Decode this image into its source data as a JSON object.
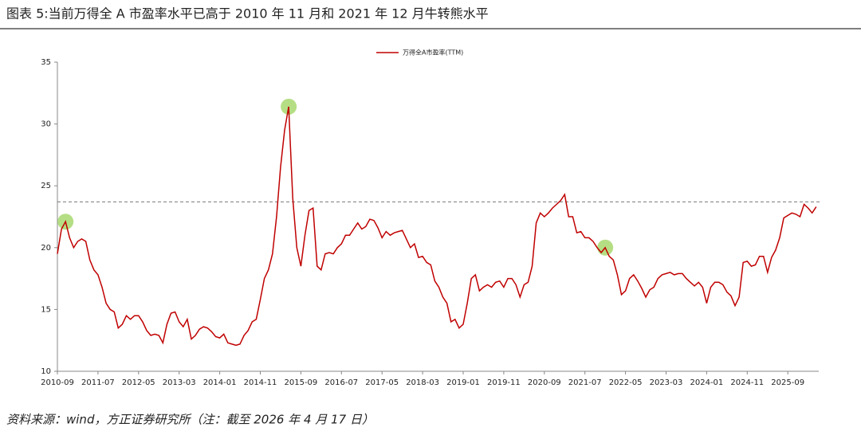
{
  "chart_data": {
    "type": "line",
    "title": "图表 5:当前万得全 A 市盈率水平已高于 2010 年 11 月和 2021 年 12 月牛转熊水平",
    "source": "资料来源：wind，方正证券研究所（注：截至 2026 年 4 月 17 日）",
    "x": [
      "2010-09",
      "2010-10",
      "2010-11",
      "2010-12",
      "2011-01",
      "2011-02",
      "2011-03",
      "2011-04",
      "2011-05",
      "2011-06",
      "2011-07",
      "2011-08",
      "2011-09",
      "2011-10",
      "2011-11",
      "2011-12",
      "2012-01",
      "2012-02",
      "2012-03",
      "2012-04",
      "2012-05",
      "2012-06",
      "2012-07",
      "2012-08",
      "2012-09",
      "2012-10",
      "2012-11",
      "2012-12",
      "2013-01",
      "2013-02",
      "2013-03",
      "2013-04",
      "2013-05",
      "2013-06",
      "2013-07",
      "2013-08",
      "2013-09",
      "2013-10",
      "2013-11",
      "2013-12",
      "2014-01",
      "2014-02",
      "2014-03",
      "2014-04",
      "2014-05",
      "2014-06",
      "2014-07",
      "2014-08",
      "2014-09",
      "2014-10",
      "2014-11",
      "2014-12",
      "2015-01",
      "2015-02",
      "2015-03",
      "2015-04",
      "2015-05",
      "2015-06",
      "2015-07",
      "2015-08",
      "2015-09",
      "2015-10",
      "2015-11",
      "2015-12",
      "2016-01",
      "2016-02",
      "2016-03",
      "2016-04",
      "2016-05",
      "2016-06",
      "2016-07",
      "2016-08",
      "2016-09",
      "2016-10",
      "2016-11",
      "2016-12",
      "2017-01",
      "2017-02",
      "2017-03",
      "2017-04",
      "2017-05",
      "2017-06",
      "2017-07",
      "2017-08",
      "2017-09",
      "2017-10",
      "2017-11",
      "2017-12",
      "2018-01",
      "2018-02",
      "2018-03",
      "2018-04",
      "2018-05",
      "2018-06",
      "2018-07",
      "2018-08",
      "2018-09",
      "2018-10",
      "2018-11",
      "2018-12",
      "2019-01",
      "2019-02",
      "2019-03",
      "2019-04",
      "2019-05",
      "2019-06",
      "2019-07",
      "2019-08",
      "2019-09",
      "2019-10",
      "2019-11",
      "2019-12",
      "2020-01",
      "2020-02",
      "2020-03",
      "2020-04",
      "2020-05",
      "2020-06",
      "2020-07",
      "2020-08",
      "2020-09",
      "2020-10",
      "2020-11",
      "2020-12",
      "2021-01",
      "2021-02",
      "2021-03",
      "2021-04",
      "2021-05",
      "2021-06",
      "2021-07",
      "2021-08",
      "2021-09",
      "2021-10",
      "2021-11",
      "2021-12",
      "2022-01",
      "2022-02",
      "2022-03",
      "2022-04",
      "2022-05",
      "2022-06",
      "2022-07",
      "2022-08",
      "2022-09",
      "2022-10",
      "2022-11",
      "2022-12",
      "2023-01",
      "2023-02",
      "2023-03",
      "2023-04",
      "2023-05",
      "2023-06",
      "2023-07",
      "2023-08",
      "2023-09",
      "2023-10",
      "2023-11",
      "2023-12",
      "2024-01",
      "2024-02",
      "2024-03",
      "2024-04",
      "2024-05",
      "2024-06",
      "2024-07",
      "2024-08",
      "2024-09",
      "2024-10",
      "2024-11",
      "2024-12",
      "2025-01",
      "2025-02",
      "2025-03",
      "2025-04",
      "2025-05",
      "2025-06",
      "2025-07",
      "2025-08",
      "2025-09",
      "2025-10",
      "2025-11",
      "2025-12",
      "2026-01",
      "2026-02",
      "2026-03",
      "2026-04"
    ],
    "series": [
      {
        "name": "万得全A市盈率(TTM)",
        "color": "#c00000",
        "values": [
          19.5,
          21.5,
          22.1,
          20.8,
          20.0,
          20.5,
          20.7,
          20.5,
          19.0,
          18.2,
          17.8,
          16.8,
          15.5,
          15.0,
          14.8,
          13.5,
          13.8,
          14.5,
          14.2,
          14.5,
          14.5,
          14.0,
          13.3,
          12.9,
          13.0,
          12.9,
          12.3,
          13.8,
          14.7,
          14.8,
          14.0,
          13.6,
          14.2,
          12.6,
          12.9,
          13.4,
          13.6,
          13.5,
          13.2,
          12.8,
          12.7,
          13.0,
          12.3,
          12.2,
          12.1,
          12.2,
          12.9,
          13.3,
          14.0,
          14.2,
          15.8,
          17.5,
          18.2,
          19.5,
          22.5,
          26.5,
          29.5,
          31.4,
          24.0,
          20.0,
          18.5,
          21.0,
          23.0,
          23.2,
          18.5,
          18.2,
          19.5,
          19.6,
          19.5,
          20.0,
          20.3,
          21.0,
          21.0,
          21.5,
          22.0,
          21.5,
          21.7,
          22.3,
          22.2,
          21.6,
          20.8,
          21.3,
          21.0,
          21.2,
          21.3,
          21.4,
          20.7,
          20.0,
          20.3,
          19.2,
          19.3,
          18.8,
          18.6,
          17.3,
          16.8,
          16.0,
          15.5,
          14.0,
          14.2,
          13.5,
          13.8,
          15.5,
          17.5,
          17.8,
          16.5,
          16.8,
          17.0,
          16.8,
          17.2,
          17.3,
          16.8,
          17.5,
          17.5,
          17.0,
          16.0,
          17.0,
          17.2,
          18.5,
          22.0,
          22.8,
          22.5,
          22.8,
          23.2,
          23.5,
          23.8,
          24.3,
          22.5,
          22.5,
          21.2,
          21.3,
          20.8,
          20.8,
          20.5,
          20.0,
          19.6,
          20.0,
          19.3,
          19.0,
          17.8,
          16.2,
          16.5,
          17.5,
          17.8,
          17.3,
          16.7,
          16.0,
          16.6,
          16.8,
          17.5,
          17.8,
          17.9,
          18.0,
          17.8,
          17.9,
          17.9,
          17.5,
          17.2,
          16.9,
          17.2,
          16.8,
          15.5,
          16.8,
          17.2,
          17.2,
          17.0,
          16.4,
          16.1,
          15.3,
          16.0,
          18.8,
          18.9,
          18.5,
          18.6,
          19.3,
          19.3,
          18.0,
          19.2,
          19.8,
          20.8,
          22.4,
          22.6,
          22.8,
          22.7,
          22.5,
          23.5,
          23.2,
          22.8,
          23.3
        ]
      }
    ],
    "xticks": [
      "2010-09",
      "2011-07",
      "2012-05",
      "2013-03",
      "2014-01",
      "2014-11",
      "2015-09",
      "2016-07",
      "2017-05",
      "2018-03",
      "2019-01",
      "2019-11",
      "2020-09",
      "2021-07",
      "2022-05",
      "2023-03",
      "2024-01",
      "2024-11",
      "2025-09"
    ],
    "ylim": [
      10,
      35
    ],
    "yticks": [
      10,
      15,
      20,
      25,
      30,
      35
    ],
    "reference_line": 23.7,
    "highlights": [
      "2010-11",
      "2015-06",
      "2021-12"
    ],
    "highlight_color": "#a8d86e",
    "legend": "top"
  }
}
